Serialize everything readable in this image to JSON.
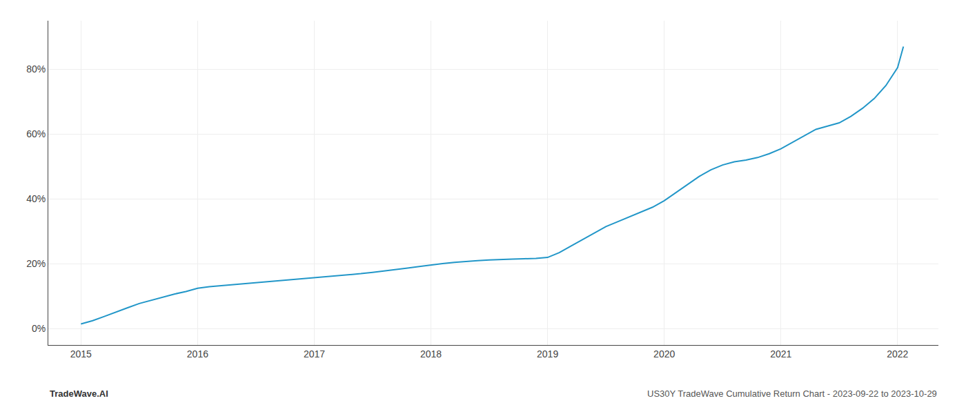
{
  "chart_data": {
    "type": "line",
    "annotations": [
      "TradeWave.AI",
      "US30Y TradeWave Cumulative Return Chart - 2023-09-22 to 2023-10-29"
    ],
    "x": [
      2015.0,
      2015.1,
      2015.2,
      2015.3,
      2015.4,
      2015.5,
      2015.6,
      2015.7,
      2015.8,
      2015.9,
      2016.0,
      2016.1,
      2016.2,
      2016.3,
      2016.4,
      2016.5,
      2016.6,
      2016.7,
      2016.8,
      2016.9,
      2017.0,
      2017.1,
      2017.2,
      2017.3,
      2017.4,
      2017.5,
      2017.6,
      2017.7,
      2017.8,
      2017.9,
      2018.0,
      2018.1,
      2018.2,
      2018.3,
      2018.4,
      2018.5,
      2018.6,
      2018.7,
      2018.8,
      2018.9,
      2019.0,
      2019.1,
      2019.2,
      2019.3,
      2019.4,
      2019.5,
      2019.6,
      2019.7,
      2019.8,
      2019.9,
      2020.0,
      2020.1,
      2020.2,
      2020.3,
      2020.4,
      2020.5,
      2020.6,
      2020.7,
      2020.8,
      2020.9,
      2021.0,
      2021.1,
      2021.2,
      2021.3,
      2021.4,
      2021.5,
      2021.6,
      2021.7,
      2021.8,
      2021.9,
      2022.0,
      2022.05
    ],
    "values": [
      1.5,
      2.5,
      3.8,
      5.2,
      6.5,
      7.8,
      8.8,
      9.8,
      10.7,
      11.5,
      12.5,
      13.0,
      13.3,
      13.6,
      13.9,
      14.2,
      14.5,
      14.8,
      15.1,
      15.4,
      15.7,
      16.0,
      16.3,
      16.6,
      17.0,
      17.4,
      17.8,
      18.2,
      18.7,
      19.2,
      19.7,
      20.1,
      20.5,
      20.8,
      21.0,
      21.2,
      21.4,
      21.5,
      21.6,
      21.7,
      22.0,
      23.5,
      25.5,
      27.5,
      29.5,
      31.5,
      33.0,
      34.5,
      36.0,
      37.5,
      39.5,
      42.0,
      44.5,
      47.0,
      49.0,
      50.5,
      51.5,
      52.0,
      52.8,
      54.0,
      55.5,
      57.5,
      59.5,
      61.5,
      62.5,
      63.5,
      65.5,
      68.0,
      71.0,
      75.0,
      80.5,
      87.0
    ],
    "color": "#2196C8",
    "xlim": [
      2014.72,
      2022.35
    ],
    "ylim": [
      -5,
      95
    ],
    "xticks": [
      2015,
      2016,
      2017,
      2018,
      2019,
      2020,
      2021,
      2022
    ],
    "yticks": [
      {
        "value": 0,
        "label": "0%"
      },
      {
        "value": 20,
        "label": "20%"
      },
      {
        "value": 40,
        "label": "40%"
      },
      {
        "value": 60,
        "label": "60%"
      },
      {
        "value": 80,
        "label": "80%"
      }
    ],
    "grid": true
  }
}
